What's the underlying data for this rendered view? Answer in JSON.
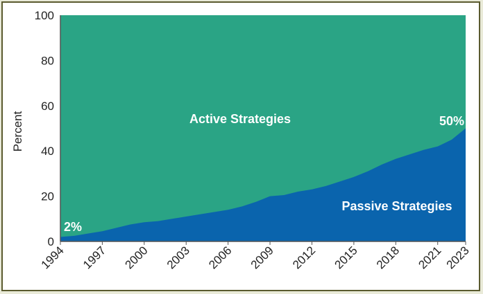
{
  "chart_data": {
    "type": "area",
    "stacked": true,
    "ylabel": "Percent",
    "xlabel": "",
    "title": "",
    "ylim": [
      0,
      100
    ],
    "xlim": [
      1994,
      2023
    ],
    "yticks": [
      0,
      20,
      40,
      60,
      80,
      100
    ],
    "xticks": [
      1994,
      1997,
      2000,
      2003,
      2006,
      2009,
      2012,
      2015,
      2018,
      2021,
      2023
    ],
    "x": [
      1994,
      1995,
      1996,
      1997,
      1998,
      1999,
      2000,
      2001,
      2002,
      2003,
      2004,
      2005,
      2006,
      2007,
      2008,
      2009,
      2010,
      2011,
      2012,
      2013,
      2014,
      2015,
      2016,
      2017,
      2018,
      2019,
      2020,
      2021,
      2022,
      2023
    ],
    "series": [
      {
        "name": "Passive Strategies",
        "color": "#0a64ad",
        "values": [
          2,
          2.5,
          3.5,
          4.5,
          6,
          7.5,
          8.5,
          9,
          10,
          11,
          12,
          13,
          14,
          15.5,
          17.5,
          20,
          20.5,
          22,
          23,
          24.5,
          26.5,
          28.5,
          31,
          34,
          36.5,
          38.5,
          40.5,
          42,
          45,
          50
        ]
      },
      {
        "name": "Active Strategies",
        "color": "#2aa485",
        "values": [
          98,
          97.5,
          96.5,
          95.5,
          94,
          92.5,
          91.5,
          91,
          90,
          89,
          88,
          87,
          86,
          84.5,
          82.5,
          80,
          79.5,
          78,
          77,
          75.5,
          73.5,
          71.5,
          69,
          66,
          63.5,
          61.5,
          59.5,
          58,
          55,
          50
        ]
      }
    ],
    "annotations": [
      {
        "text": "2%",
        "x": 1994,
        "y": 2
      },
      {
        "text": "50%",
        "x": 2023,
        "y": 50
      },
      {
        "text": "Active Strategies"
      },
      {
        "text": "Passive Strategies"
      }
    ]
  }
}
